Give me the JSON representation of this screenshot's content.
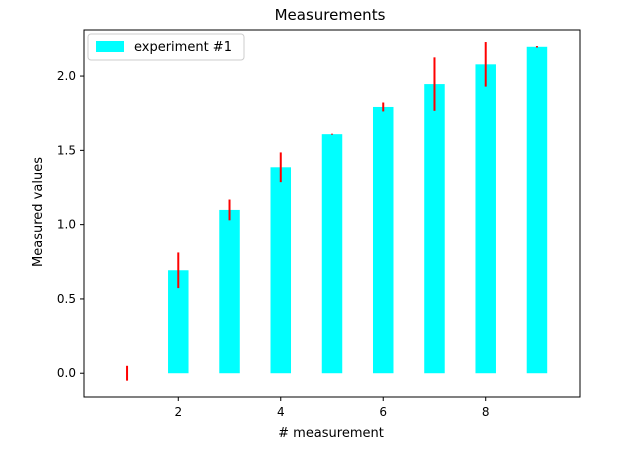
{
  "chart_data": {
    "type": "bar",
    "title": "Measurements",
    "xlabel": "# measurement",
    "ylabel": "Measured values",
    "xlim": [
      0.16,
      9.84
    ],
    "ylim": [
      -0.16,
      2.31
    ],
    "xticks": [
      2,
      4,
      6,
      8
    ],
    "xtick_labels": [
      "2",
      "4",
      "6",
      "8"
    ],
    "yticks": [
      0.0,
      0.5,
      1.0,
      1.5,
      2.0
    ],
    "ytick_labels": [
      "0.0",
      "0.5",
      "1.0",
      "1.5",
      "2.0"
    ],
    "grid": false,
    "legend_position": "top-left",
    "bar_width": 0.4,
    "series": [
      {
        "name": "experiment #1",
        "color": "#00ffff",
        "error_color": "#ff0000",
        "x": [
          1,
          2,
          3,
          4,
          5,
          6,
          7,
          8,
          9
        ],
        "values": [
          0.0,
          0.693,
          1.099,
          1.386,
          1.609,
          1.792,
          1.946,
          2.079,
          2.197
        ],
        "errors": [
          0.05,
          0.12,
          0.07,
          0.1,
          0.003,
          0.03,
          0.18,
          0.15,
          0.005
        ]
      }
    ]
  }
}
